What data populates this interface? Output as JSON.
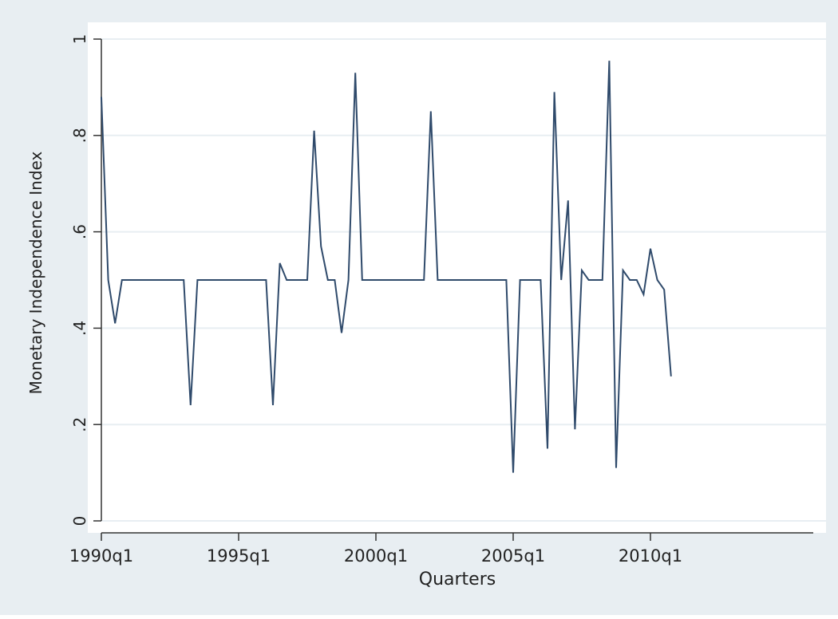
{
  "chart_data": {
    "type": "line",
    "title": "",
    "xlabel": "Quarters",
    "ylabel": "Monetary Independence Index",
    "x_start": "1990q1",
    "x_ticks": [
      "1990q1",
      "1995q1",
      "2000q1",
      "2005q1",
      "2010q1"
    ],
    "y_ticks": [
      "0",
      ".2",
      ".4",
      ".6",
      ".8",
      "1"
    ],
    "ylim": [
      0,
      1
    ],
    "xlim": [
      "1990q1",
      "2010q4"
    ],
    "grid": true,
    "legend": "none",
    "colors": {
      "outer_background": "#e8eef2",
      "plot_background": "#ffffff",
      "grid": "#e8eef2",
      "line": "#2f4a6b",
      "axis": "#333333"
    },
    "series": [
      {
        "name": "",
        "x": [
          "1990q1",
          "1990q2",
          "1990q3",
          "1990q4",
          "1991q1",
          "1991q2",
          "1991q3",
          "1991q4",
          "1992q1",
          "1992q2",
          "1992q3",
          "1992q4",
          "1993q1",
          "1993q2",
          "1993q3",
          "1993q4",
          "1994q1",
          "1994q2",
          "1994q3",
          "1994q4",
          "1995q1",
          "1995q2",
          "1995q3",
          "1995q4",
          "1996q1",
          "1996q2",
          "1996q3",
          "1996q4",
          "1997q1",
          "1997q2",
          "1997q3",
          "1997q4",
          "1998q1",
          "1998q2",
          "1998q3",
          "1998q4",
          "1999q1",
          "1999q2",
          "1999q3",
          "1999q4",
          "2000q1",
          "2000q2",
          "2000q3",
          "2000q4",
          "2001q1",
          "2001q2",
          "2001q3",
          "2001q4",
          "2002q1",
          "2002q2",
          "2002q3",
          "2002q4",
          "2003q1",
          "2003q2",
          "2003q3",
          "2003q4",
          "2004q1",
          "2004q2",
          "2004q3",
          "2004q4",
          "2005q1",
          "2005q2",
          "2005q3",
          "2005q4",
          "2006q1",
          "2006q2",
          "2006q3",
          "2006q4",
          "2007q1",
          "2007q2",
          "2007q3",
          "2007q4",
          "2008q1",
          "2008q2",
          "2008q3",
          "2008q4",
          "2009q1",
          "2009q2",
          "2009q3",
          "2009q4",
          "2010q1",
          "2010q2",
          "2010q3",
          "2010q4"
        ],
        "values": [
          0.88,
          0.5,
          0.41,
          0.5,
          0.5,
          0.5,
          0.5,
          0.5,
          0.5,
          0.5,
          0.5,
          0.5,
          0.5,
          0.24,
          0.5,
          0.5,
          0.5,
          0.5,
          0.5,
          0.5,
          0.5,
          0.5,
          0.5,
          0.5,
          0.5,
          0.24,
          0.535,
          0.5,
          0.5,
          0.5,
          0.5,
          0.81,
          0.57,
          0.5,
          0.5,
          0.39,
          0.5,
          0.93,
          0.5,
          0.5,
          0.5,
          0.5,
          0.5,
          0.5,
          0.5,
          0.5,
          0.5,
          0.5,
          0.85,
          0.5,
          0.5,
          0.5,
          0.5,
          0.5,
          0.5,
          0.5,
          0.5,
          0.5,
          0.5,
          0.5,
          0.1,
          0.5,
          0.5,
          0.5,
          0.5,
          0.15,
          0.89,
          0.5,
          0.665,
          0.19,
          0.52,
          0.5,
          0.5,
          0.5,
          0.955,
          0.11,
          0.52,
          0.5,
          0.5,
          0.47,
          0.565,
          0.5,
          0.48,
          0.3
        ]
      }
    ]
  }
}
